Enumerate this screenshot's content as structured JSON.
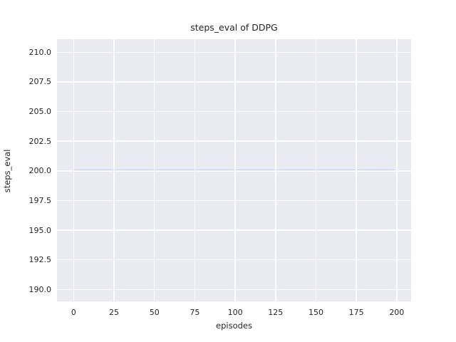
{
  "figure": {
    "background": "#ffffff",
    "plot_background": "#eaeaf2",
    "grid_color": "#ffffff",
    "text_color": "#262626"
  },
  "chart_data": {
    "type": "line",
    "title": "steps_eval of DDPG",
    "xlabel": "episodes",
    "ylabel": "steps_eval",
    "xlim": [
      -10.3,
      208.9
    ],
    "ylim": [
      189.0,
      211.1
    ],
    "xticks": [
      0,
      25,
      50,
      75,
      100,
      125,
      150,
      175,
      200
    ],
    "yticks": [
      190.0,
      192.5,
      195.0,
      197.5,
      200.0,
      202.5,
      205.0,
      207.5,
      210.0
    ],
    "grid": true,
    "legend": false,
    "style": "seaborn-darkgrid",
    "series": [
      {
        "name": "steps_eval",
        "color": "#4c72b0",
        "line_width": 2,
        "constant_y": 200,
        "x_start": 0,
        "x_end": 199,
        "points": [
          [
            0,
            200
          ],
          [
            199,
            200
          ]
        ]
      }
    ]
  }
}
